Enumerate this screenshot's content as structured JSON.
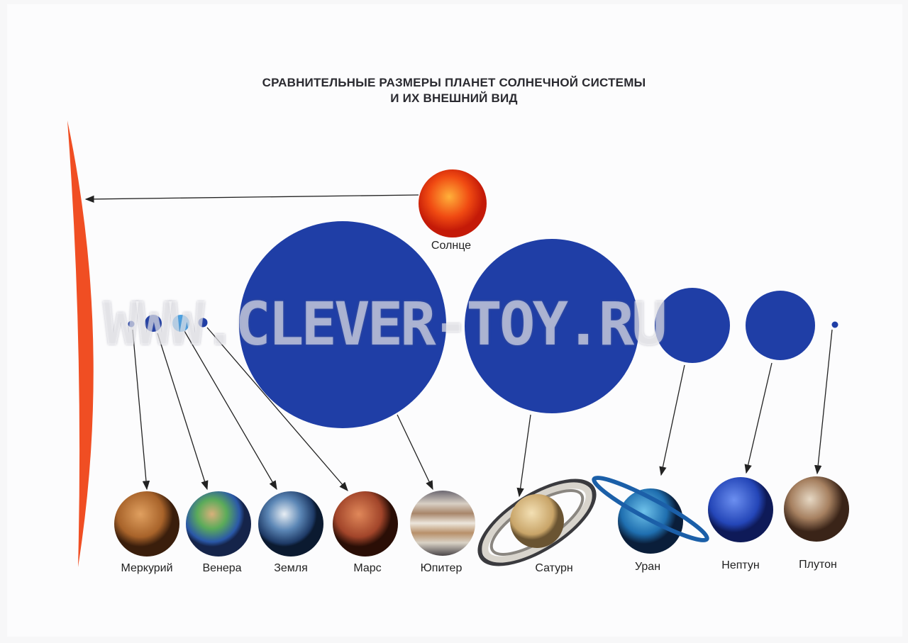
{
  "title": {
    "line1": "СРАВНИТЕЛЬНЫЕ РАЗМЕРЫ ПЛАНЕТ СОЛНЕЧНОЙ СИСТЕМЫ",
    "line2": "И ИХ ВНЕШНИЙ ВИД"
  },
  "sun": {
    "label": "Солнце",
    "color": "#f04e23"
  },
  "planets": [
    {
      "label": "Меркурий"
    },
    {
      "label": "Венера"
    },
    {
      "label": "Земля"
    },
    {
      "label": "Марс"
    },
    {
      "label": "Юпитер"
    },
    {
      "label": "Сатурн"
    },
    {
      "label": "Уран"
    },
    {
      "label": "Нептун"
    },
    {
      "label": "Плутон"
    }
  ],
  "colors": {
    "scale_circle": "#1f3ea6",
    "earth_scale_circle": "#4aa3e6",
    "arrow": "#222222"
  },
  "watermark": "WWW.CLEVER-TOY.RU"
}
